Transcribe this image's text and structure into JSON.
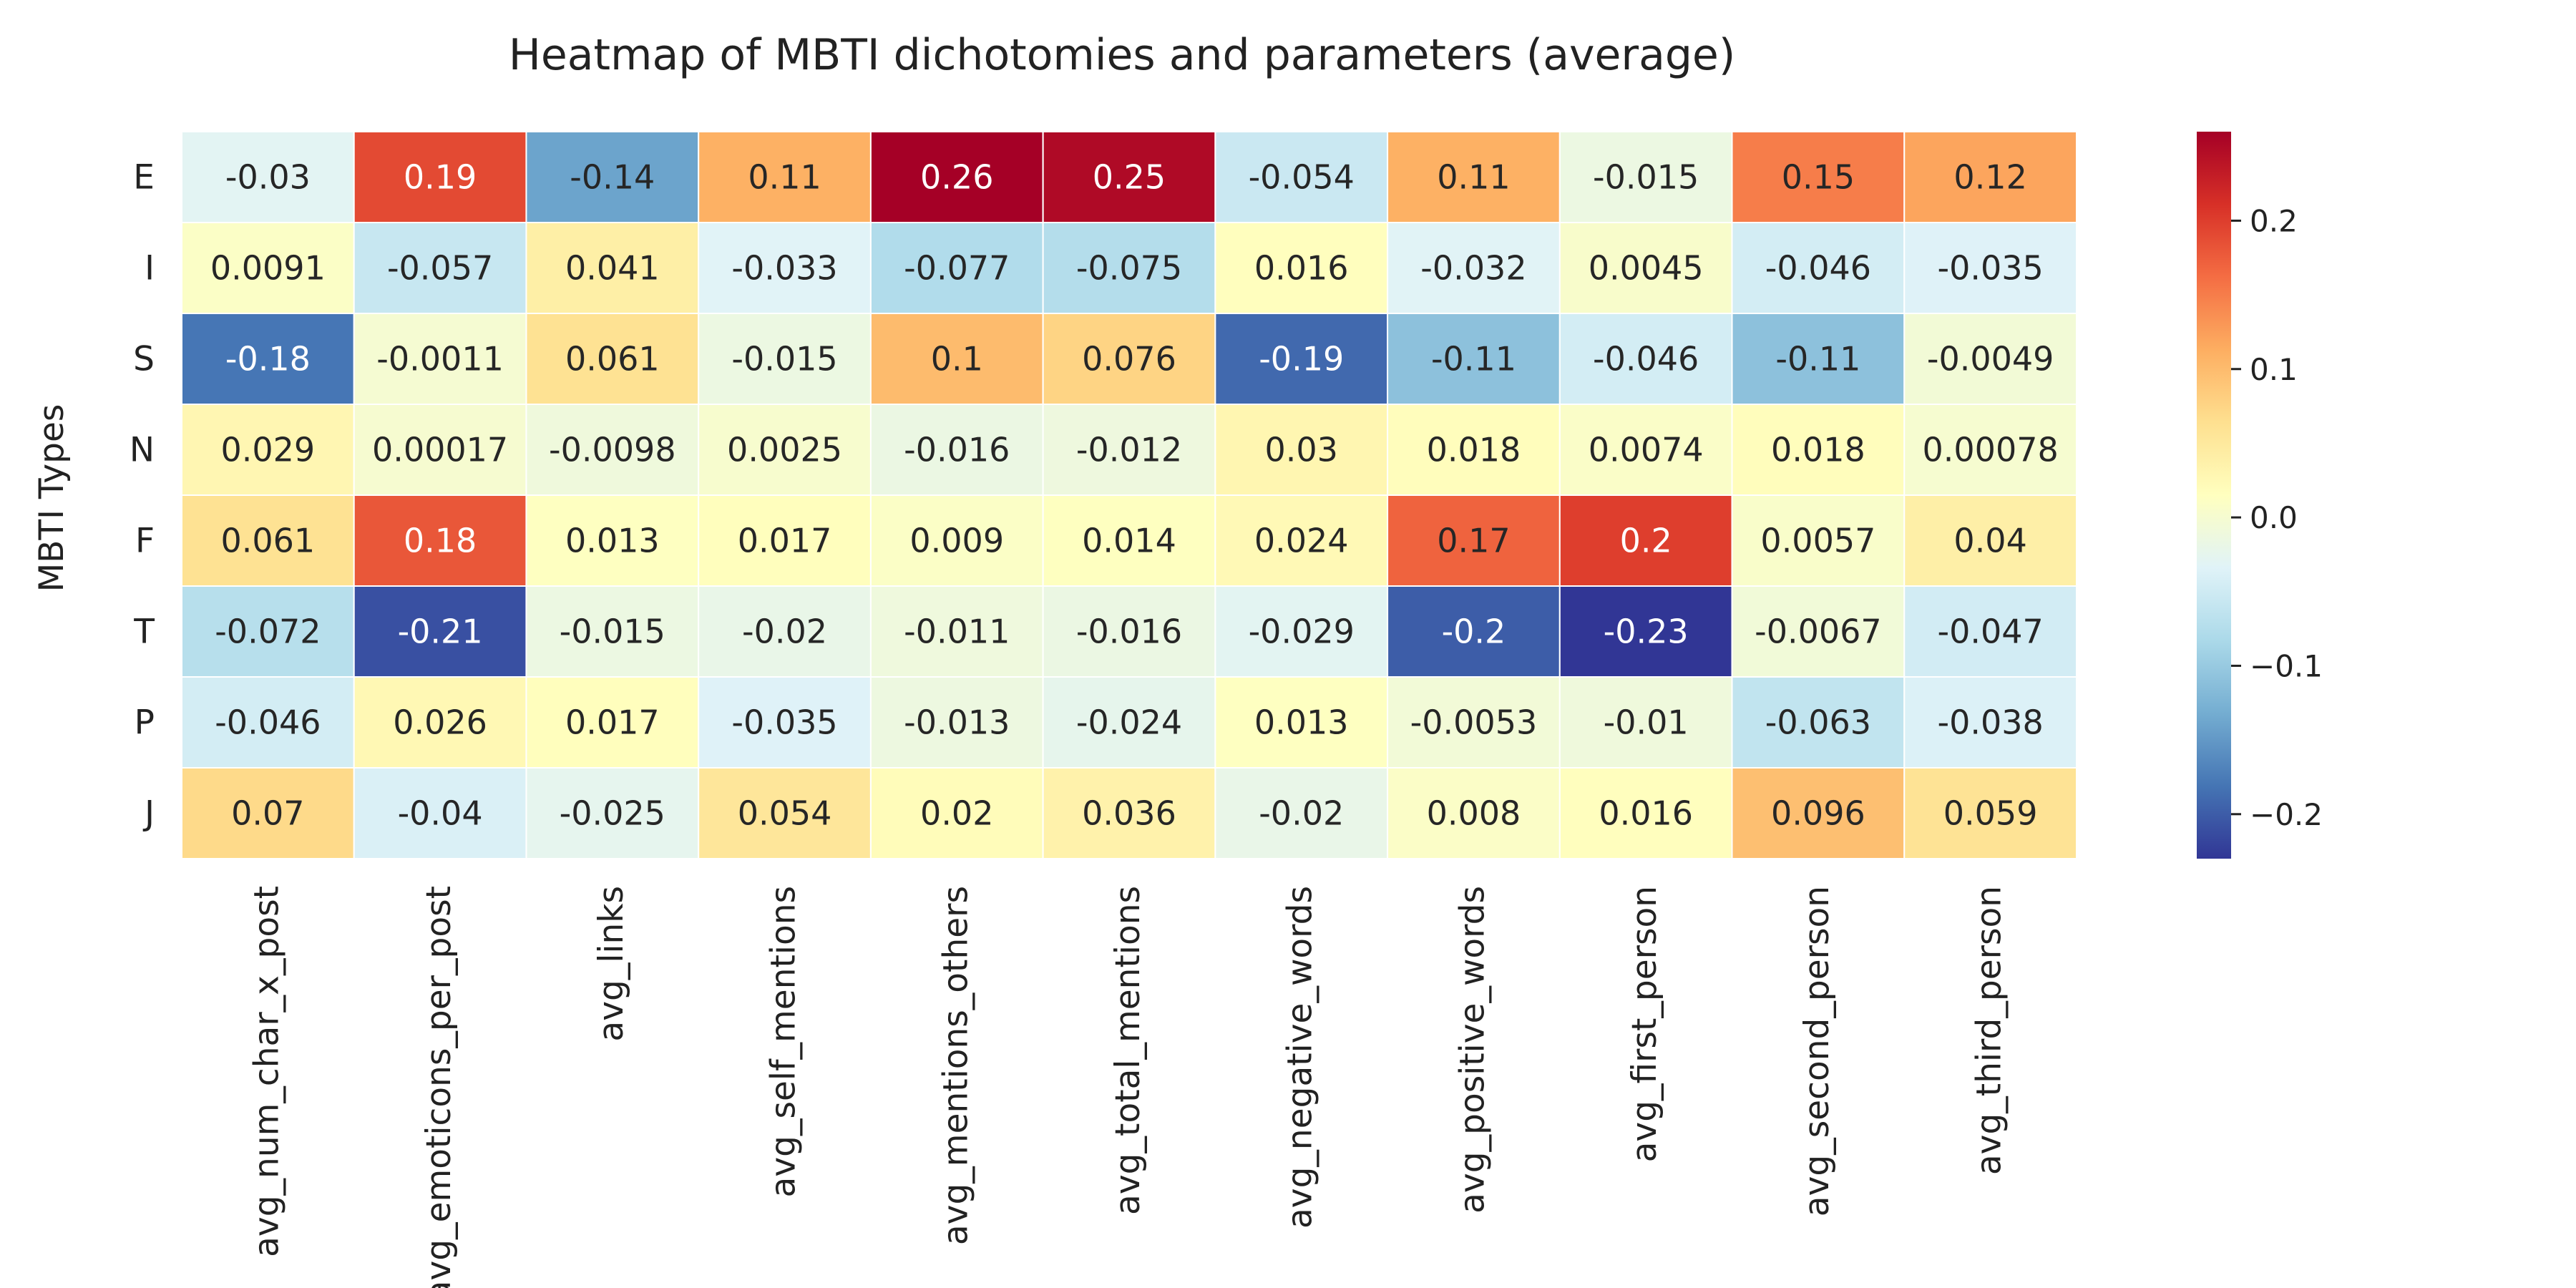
{
  "chart_data": {
    "type": "heatmap",
    "title": "Heatmap of MBTI dichotomies and parameters (average)",
    "xlabel": "",
    "ylabel": "MBTI Types",
    "rows": [
      "E",
      "I",
      "S",
      "N",
      "F",
      "T",
      "P",
      "J"
    ],
    "columns": [
      "avg_num_char_x_post",
      "avg_emoticons_per_post",
      "avg_links",
      "avg_self_mentions",
      "avg_mentions_others",
      "avg_total_mentions",
      "avg_negative_words",
      "avg_positive_words",
      "avg_first_person",
      "avg_second_person",
      "avg_third_person"
    ],
    "values": [
      [
        -0.03,
        0.19,
        -0.14,
        0.11,
        0.26,
        0.25,
        -0.054,
        0.11,
        -0.015,
        0.15,
        0.12
      ],
      [
        0.0091,
        -0.057,
        0.041,
        -0.033,
        -0.077,
        -0.075,
        0.016,
        -0.032,
        0.0045,
        -0.046,
        -0.035
      ],
      [
        -0.18,
        -0.0011,
        0.061,
        -0.015,
        0.1,
        0.076,
        -0.19,
        -0.11,
        -0.046,
        -0.11,
        -0.0049
      ],
      [
        0.029,
        0.00017,
        -0.0098,
        0.0025,
        -0.016,
        -0.012,
        0.03,
        0.018,
        0.0074,
        0.018,
        0.00078
      ],
      [
        0.061,
        0.18,
        0.013,
        0.017,
        0.009,
        0.014,
        0.024,
        0.17,
        0.2,
        0.0057,
        0.04
      ],
      [
        -0.072,
        -0.21,
        -0.015,
        -0.02,
        -0.011,
        -0.016,
        -0.029,
        -0.2,
        -0.23,
        -0.0067,
        -0.047
      ],
      [
        -0.046,
        0.026,
        0.017,
        -0.035,
        -0.013,
        -0.024,
        0.013,
        -0.0053,
        -0.01,
        -0.063,
        -0.038
      ],
      [
        0.07,
        -0.04,
        -0.025,
        0.054,
        0.02,
        0.036,
        -0.02,
        0.008,
        0.016,
        0.096,
        0.059
      ]
    ],
    "colormap": "RdYlBu_r",
    "vmin": -0.23,
    "vmax": 0.26,
    "colorbar": {
      "ticks": [
        -0.2,
        -0.1,
        0.0,
        0.1,
        0.2
      ],
      "tick_labels": [
        "−0.2",
        "−0.1",
        "0.0",
        "0.1",
        "0.2"
      ]
    },
    "grid": false
  }
}
